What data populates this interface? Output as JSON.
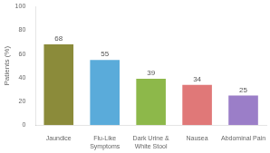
{
  "chart_data": {
    "type": "bar",
    "categories": [
      "Jaundice",
      "Flu-Like\nSymptoms",
      "Dark Urine &\nWhite Stool",
      "Nausea",
      "Abdominal Pain"
    ],
    "values": [
      68,
      55,
      39,
      34,
      25
    ],
    "colors": [
      "#8b8b3a",
      "#5aabda",
      "#8db84a",
      "#e07878",
      "#9b7ec8"
    ],
    "ylabel": "Patients (%)",
    "ylim": [
      0,
      100
    ],
    "yticks": [
      0,
      20,
      40,
      60,
      80,
      100
    ],
    "grid": false,
    "data_labels": true
  }
}
